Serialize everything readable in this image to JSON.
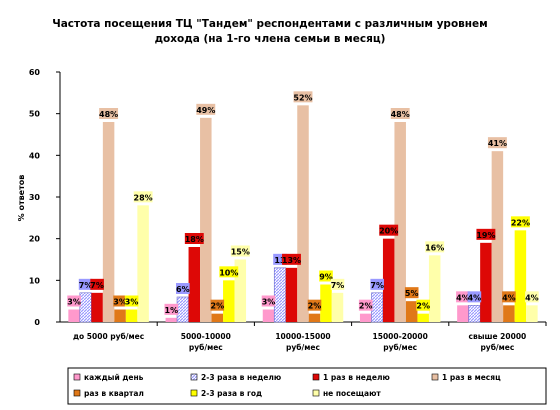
{
  "chart_data": {
    "type": "bar",
    "title_lines": [
      "Частота посещения ТЦ \"Тандем\" респондентами с различным уровнем",
      "дохода (на 1-го члена семьи в месяц)"
    ],
    "ylabel": "% ответов",
    "ylim": [
      0,
      60
    ],
    "yticks": [
      "0",
      "10",
      "20",
      "30",
      "40",
      "50",
      "60"
    ],
    "grid": false,
    "legend_position": "bottom",
    "category_label_lines": [
      [
        "до 5000 руб/мес"
      ],
      [
        "5000-10000",
        "руб/мес"
      ],
      [
        "10000-15000",
        "руб/мес"
      ],
      [
        "15000-20000",
        "руб/мес"
      ],
      [
        "свыше 20000",
        "руб/мес"
      ]
    ],
    "series": [
      {
        "name": "каждый день",
        "color": "#ff99cc",
        "values": [
          3,
          1,
          3,
          2,
          4
        ],
        "labels": [
          "3%",
          "1%",
          "3%",
          "2%",
          "4%"
        ]
      },
      {
        "name": "2-3 раза в неделю",
        "color": "#9999ff",
        "values": [
          7,
          6,
          13,
          7,
          4
        ],
        "labels": [
          "7%",
          "6%",
          "13",
          "7%",
          "4%"
        ]
      },
      {
        "name": "1 раз в неделю",
        "color": "#dd0806",
        "values": [
          7,
          18,
          13,
          20,
          19
        ],
        "labels": [
          "7%",
          "18%",
          "13%",
          "20%",
          "19%"
        ]
      },
      {
        "name": "1 раз в месяц",
        "color": "#e8c0a4",
        "values": [
          48,
          49,
          52,
          48,
          41
        ],
        "labels": [
          "48%",
          "49%",
          "52%",
          "48%",
          "41%"
        ]
      },
      {
        "name": "раз в квартал",
        "color": "#e07818",
        "values": [
          3,
          2,
          2,
          5,
          4
        ],
        "labels": [
          "3%",
          "2%",
          "2%",
          "5%",
          "4%"
        ]
      },
      {
        "name": "2-3 раза в год",
        "color": "#ffff00",
        "values": [
          3,
          10,
          9,
          2,
          22
        ],
        "labels": [
          "3%",
          "10%",
          "9%",
          "2%",
          "22%"
        ]
      },
      {
        "name": "не посещают",
        "color": "#ffffaa",
        "values": [
          28,
          15,
          7,
          16,
          4
        ],
        "labels": [
          "28%",
          "15%",
          "7%",
          "16%",
          "4%"
        ]
      }
    ]
  }
}
